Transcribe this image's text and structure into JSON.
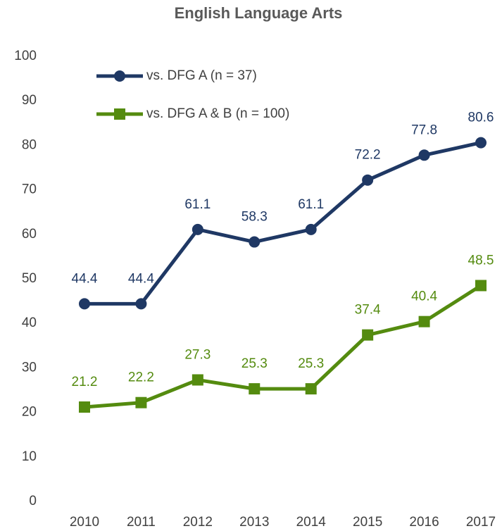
{
  "chart_data": {
    "type": "line",
    "title": "English Language Arts",
    "categories": [
      "2010",
      "2011",
      "2012",
      "2013",
      "2014",
      "2015",
      "2016",
      "2017"
    ],
    "series": [
      {
        "name": "vs. DFG A (n = 37)",
        "color": "#1f3864",
        "marker": "circle",
        "values": [
          44.4,
          44.4,
          61.1,
          58.3,
          61.1,
          72.2,
          77.8,
          80.6
        ]
      },
      {
        "name": "vs. DFG A & B (n = 100)",
        "color": "#548b0f",
        "marker": "square",
        "values": [
          21.2,
          22.2,
          27.3,
          25.3,
          25.3,
          37.4,
          40.4,
          48.5
        ]
      }
    ],
    "ylim": [
      0,
      100
    ],
    "yticks": [
      0,
      10,
      20,
      30,
      40,
      50,
      60,
      70,
      80,
      90,
      100
    ],
    "grid": false,
    "legend": "top-left"
  }
}
